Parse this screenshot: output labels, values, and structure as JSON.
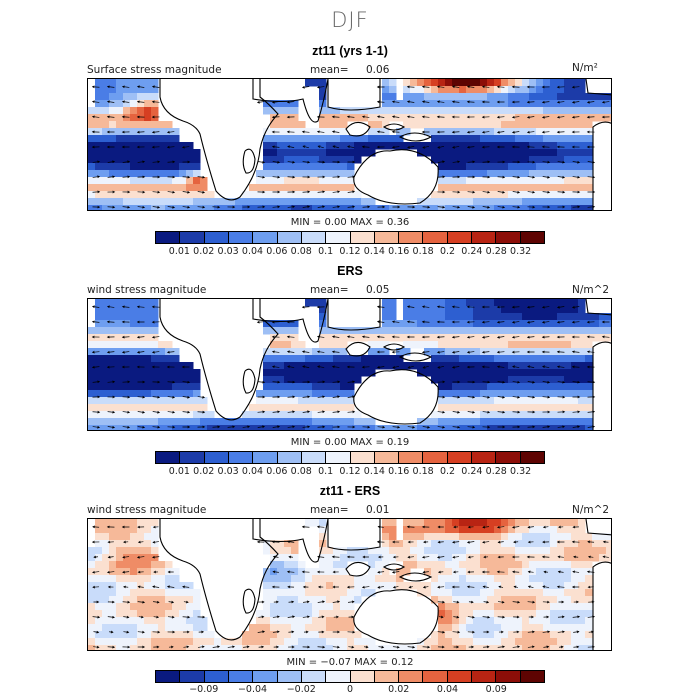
{
  "figure": {
    "season": "DJF",
    "palette": {
      "sequential": [
        "#0a1a80",
        "#1c3ba8",
        "#2d5fd1",
        "#4a7de6",
        "#6e9ef0",
        "#9ebff5",
        "#c9dcfa",
        "#eef3fc",
        "#fbe0d0",
        "#f6b999",
        "#ef8c66",
        "#e5633f",
        "#d63f22",
        "#b82413",
        "#8c0e08",
        "#5e0402"
      ],
      "diverging": [
        "#0a1a80",
        "#1c3ba8",
        "#2d5fd1",
        "#4a7de6",
        "#6e9ef0",
        "#9ebff5",
        "#c9dcfa",
        "#eef3fc",
        "#fbe0d0",
        "#f6b999",
        "#ef8c66",
        "#e5633f",
        "#d63f22",
        "#b82413",
        "#8c0e08",
        "#5e0402"
      ],
      "land": "#ffffff",
      "coast": "#000000"
    }
  },
  "panels": [
    {
      "title": "zt11 (yrs 1-1)",
      "left_label": "Surface stress magnitude",
      "mean_label": "mean=",
      "mean_value": "0.06",
      "units": "N/m²",
      "min_label": "MIN =",
      "min_value": "0.00",
      "max_label": "MAX =",
      "max_value": "0.36",
      "colorbar_ticks": [
        "0.01",
        "0.02",
        "0.03",
        "0.04",
        "0.06",
        "0.08",
        "0.1",
        "0.12",
        "0.14",
        "0.16",
        "0.18",
        "0.2",
        "0.24",
        "0.28",
        "0.32"
      ],
      "scheme": "sequential"
    },
    {
      "title": "ERS",
      "left_label": "wind stress magnitude",
      "mean_label": "mean=",
      "mean_value": "0.05",
      "units": "N/m^2",
      "min_label": "MIN =",
      "min_value": "0.00",
      "max_label": "MAX =",
      "max_value": "0.19",
      "colorbar_ticks": [
        "0.01",
        "0.02",
        "0.03",
        "0.04",
        "0.06",
        "0.08",
        "0.1",
        "0.12",
        "0.14",
        "0.16",
        "0.18",
        "0.2",
        "0.24",
        "0.28",
        "0.32"
      ],
      "scheme": "sequential"
    },
    {
      "title": "zt11 - ERS",
      "left_label": "wind stress magnitude",
      "mean_label": "mean=",
      "mean_value": "0.01",
      "units": "N/m^2",
      "min_label": "MIN =",
      "min_value": "−0.07",
      "max_label": "MAX =",
      "max_value": "0.12",
      "colorbar_ticks": [
        "−0.09",
        "−0.04",
        "−0.02",
        "0",
        "0.02",
        "0.04",
        "0.09"
      ],
      "scheme": "diverging"
    }
  ],
  "chart_data": [
    {
      "type": "heatmap",
      "title": "zt11 (yrs 1-1)",
      "variable": "Surface stress magnitude",
      "units": "N/m²",
      "mean": 0.06,
      "min": 0.0,
      "max": 0.36,
      "contour_levels": [
        0.01,
        0.02,
        0.03,
        0.04,
        0.06,
        0.08,
        0.1,
        0.12,
        0.14,
        0.16,
        0.18,
        0.2,
        0.24,
        0.28,
        0.32
      ],
      "domain": "tropical band, Atlantic–Indian–Pacific",
      "overlay": "wind stress vectors"
    },
    {
      "type": "heatmap",
      "title": "ERS",
      "variable": "wind stress magnitude",
      "units": "N/m^2",
      "mean": 0.05,
      "min": 0.0,
      "max": 0.19,
      "contour_levels": [
        0.01,
        0.02,
        0.03,
        0.04,
        0.06,
        0.08,
        0.1,
        0.12,
        0.14,
        0.16,
        0.18,
        0.2,
        0.24,
        0.28,
        0.32
      ],
      "domain": "tropical band, Atlantic–Indian–Pacific",
      "overlay": "wind stress vectors"
    },
    {
      "type": "heatmap",
      "title": "zt11 - ERS",
      "variable": "wind stress magnitude",
      "units": "N/m^2",
      "mean": 0.01,
      "min": -0.07,
      "max": 0.12,
      "contour_levels": [
        -0.09,
        -0.04,
        -0.02,
        0,
        0.02,
        0.04,
        0.09
      ],
      "domain": "tropical band, Atlantic–Indian–Pacific",
      "overlay": "wind stress difference vectors"
    }
  ]
}
